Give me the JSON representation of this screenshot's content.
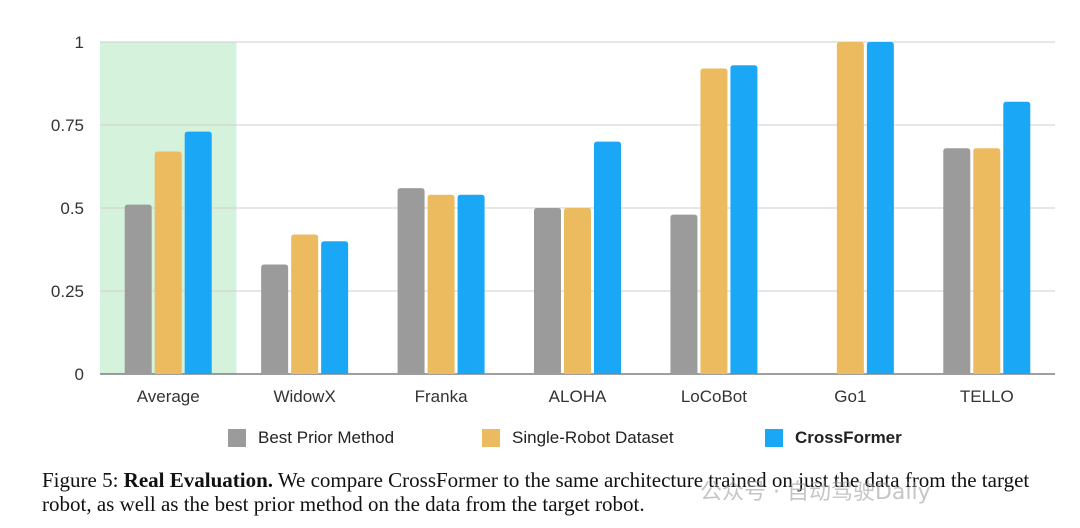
{
  "chart_data": {
    "type": "bar",
    "categories": [
      "Average",
      "WidowX",
      "Franka",
      "ALOHA",
      "LoCoBot",
      "Go1",
      "TELLO"
    ],
    "series": [
      {
        "name": "Best Prior Method",
        "color": "#9b9b9b",
        "values": [
          0.51,
          0.33,
          0.56,
          0.5,
          0.48,
          null,
          0.68
        ]
      },
      {
        "name": "Single-Robot Dataset",
        "color": "#edbb5f",
        "values": [
          0.67,
          0.42,
          0.54,
          0.5,
          0.92,
          1.0,
          0.68
        ]
      },
      {
        "name": "CrossFormer",
        "color": "#1aa7f5",
        "values": [
          0.73,
          0.4,
          0.54,
          0.7,
          0.93,
          1.0,
          0.82
        ]
      }
    ],
    "ylim": [
      0,
      1
    ],
    "yticks": [
      0,
      0.25,
      0.5,
      0.75,
      1
    ],
    "ytick_labels": [
      "0",
      "0.25",
      "0.5",
      "0.75",
      "1"
    ],
    "highlight_category": "Average",
    "highlight_color": "#d4f2dc",
    "grid": true,
    "legend_position": "bottom"
  },
  "caption": {
    "prefix": "Figure 5: ",
    "bold": "Real Evaluation.",
    "text": " We compare CrossFormer to the same architecture trained on just the data from the target robot, as well as the best prior method on the data from the target robot."
  },
  "watermark": "公众号 · 自动驾驶Daily"
}
